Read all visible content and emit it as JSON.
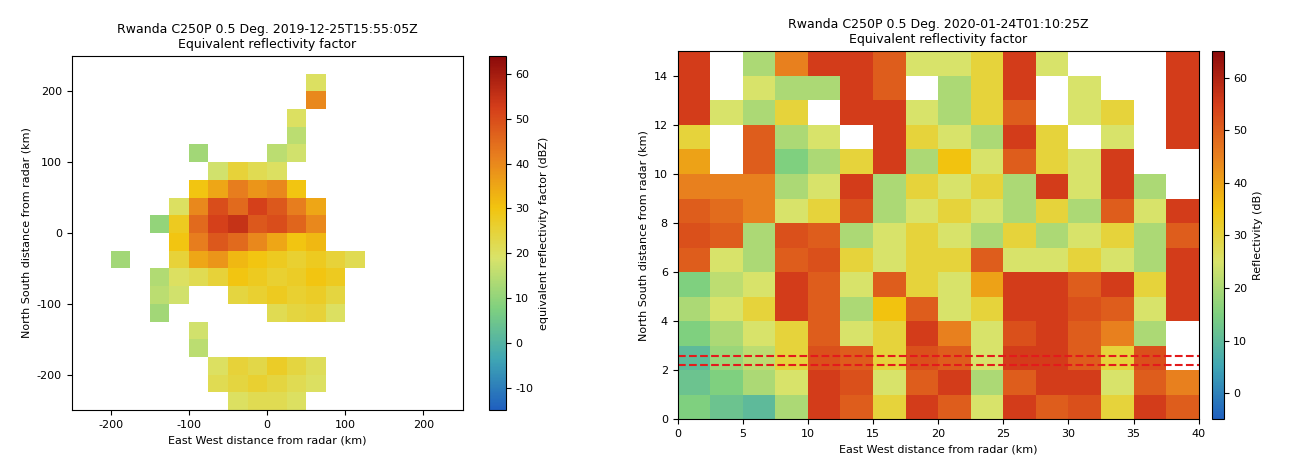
{
  "chart_data": [
    {
      "type": "heatmap",
      "title": "Rwanda C250P 0.5 Deg. 2019-12-25T15:55:05Z\nEquivalent reflectivity factor",
      "x_label": "East West distance from radar (km)",
      "y_label": "North South distance from radar (km)",
      "xlim": [
        -250,
        250
      ],
      "ylim": [
        -250,
        250
      ],
      "xticks": [
        -200,
        -100,
        0,
        100,
        200
      ],
      "yticks": [
        -200,
        -100,
        0,
        100,
        200
      ],
      "cells": [
        [
          null,
          null,
          null,
          null,
          null,
          null,
          null,
          null,
          20,
          22,
          22,
          20,
          null,
          null,
          null,
          null,
          null,
          null,
          null,
          null
        ],
        [
          null,
          null,
          null,
          null,
          null,
          null,
          null,
          22,
          24,
          26,
          24,
          22,
          20,
          null,
          null,
          null,
          null,
          null,
          null,
          null
        ],
        [
          null,
          null,
          null,
          null,
          null,
          null,
          null,
          20,
          25,
          23,
          27,
          24,
          21,
          null,
          null,
          null,
          null,
          null,
          null,
          null
        ],
        [
          null,
          null,
          null,
          null,
          null,
          null,
          15,
          null,
          null,
          null,
          null,
          null,
          null,
          null,
          null,
          null,
          null,
          null,
          null,
          null
        ],
        [
          null,
          null,
          null,
          null,
          null,
          null,
          18,
          null,
          null,
          null,
          null,
          null,
          null,
          null,
          null,
          null,
          null,
          null,
          null,
          null
        ],
        [
          null,
          null,
          null,
          null,
          12,
          null,
          null,
          null,
          null,
          null,
          22,
          24,
          25,
          20,
          null,
          null,
          null,
          null,
          null,
          null
        ],
        [
          null,
          null,
          null,
          null,
          15,
          18,
          null,
          null,
          24,
          26,
          28,
          26,
          27,
          24,
          null,
          null,
          null,
          null,
          null,
          null
        ],
        [
          null,
          null,
          null,
          null,
          14,
          20,
          22,
          25,
          30,
          28,
          26,
          27,
          30,
          28,
          null,
          null,
          null,
          null,
          null,
          null
        ],
        [
          null,
          null,
          12,
          null,
          null,
          25,
          35,
          38,
          32,
          30,
          28,
          26,
          28,
          25,
          22,
          null,
          null,
          null,
          null,
          null
        ],
        [
          null,
          null,
          null,
          null,
          null,
          30,
          42,
          48,
          45,
          40,
          35,
          30,
          32,
          null,
          null,
          null,
          null,
          null,
          null,
          null
        ],
        [
          null,
          null,
          null,
          null,
          10,
          28,
          45,
          52,
          55,
          48,
          50,
          46,
          40,
          null,
          null,
          null,
          null,
          null,
          null,
          null
        ],
        [
          null,
          null,
          null,
          null,
          null,
          20,
          40,
          50,
          45,
          52,
          48,
          42,
          35,
          null,
          null,
          null,
          null,
          null,
          null,
          null
        ],
        [
          null,
          null,
          null,
          null,
          null,
          null,
          30,
          35,
          42,
          38,
          40,
          30,
          null,
          null,
          null,
          null,
          null,
          null,
          null,
          null
        ],
        [
          null,
          null,
          null,
          null,
          null,
          null,
          null,
          18,
          25,
          22,
          20,
          null,
          null,
          null,
          null,
          null,
          null,
          null,
          null,
          null
        ],
        [
          null,
          null,
          null,
          null,
          null,
          null,
          12,
          null,
          null,
          null,
          15,
          18,
          null,
          null,
          null,
          null,
          null,
          null,
          null,
          null
        ],
        [
          null,
          null,
          null,
          null,
          null,
          null,
          null,
          null,
          null,
          null,
          null,
          15,
          null,
          null,
          null,
          null,
          null,
          null,
          null,
          null
        ],
        [
          null,
          null,
          null,
          null,
          null,
          null,
          null,
          null,
          null,
          null,
          null,
          20,
          null,
          null,
          null,
          null,
          null,
          null,
          null,
          null
        ],
        [
          null,
          null,
          null,
          null,
          null,
          null,
          null,
          null,
          null,
          null,
          null,
          null,
          40,
          null,
          null,
          null,
          null,
          null,
          null,
          null
        ],
        [
          null,
          null,
          null,
          null,
          null,
          null,
          null,
          null,
          null,
          null,
          null,
          null,
          20,
          null,
          null,
          null,
          null,
          null,
          null,
          null
        ],
        [
          null,
          null,
          null,
          null,
          null,
          null,
          null,
          null,
          null,
          null,
          null,
          null,
          null,
          null,
          null,
          null,
          null,
          null,
          null,
          null
        ]
      ],
      "colorbar": {
        "label": "equivalent reflectivity factor (dBZ)",
        "range": [
          -15,
          64
        ],
        "ticks": [
          -10,
          0,
          10,
          20,
          30,
          40,
          50,
          60
        ]
      }
    },
    {
      "type": "heatmap",
      "title": "Rwanda C250P 0.5 Deg. 2020-01-24T01:10:25Z\nEquivalent reflectivity factor",
      "x_label": "East West distance from radar (km)",
      "y_label": "North South distance from radar (km)",
      "xlim": [
        0,
        40
      ],
      "ylim": [
        0,
        15
      ],
      "xticks": [
        0,
        5,
        10,
        15,
        20,
        25,
        30,
        35,
        40
      ],
      "yticks": [
        0,
        2,
        4,
        6,
        8,
        10,
        12,
        14
      ],
      "cells": [
        [
          15,
          12,
          10,
          20,
          55,
          50,
          30,
          55,
          50,
          25,
          55,
          50,
          52,
          30,
          55,
          50
        ],
        [
          12,
          15,
          20,
          25,
          55,
          52,
          25,
          50,
          55,
          20,
          50,
          55,
          55,
          25,
          50,
          45
        ],
        [
          10,
          18,
          22,
          30,
          52,
          50,
          30,
          52,
          50,
          25,
          55,
          55,
          50,
          30,
          52,
          null
        ],
        [
          15,
          20,
          25,
          30,
          50,
          25,
          30,
          55,
          45,
          25,
          52,
          55,
          50,
          45,
          20,
          null
        ],
        [
          20,
          25,
          30,
          55,
          50,
          20,
          35,
          50,
          25,
          30,
          55,
          55,
          52,
          50,
          25,
          55
        ],
        [
          15,
          22,
          25,
          55,
          50,
          25,
          50,
          30,
          25,
          40,
          55,
          55,
          50,
          55,
          30,
          55
        ],
        [
          50,
          25,
          20,
          50,
          52,
          30,
          25,
          30,
          30,
          50,
          25,
          25,
          30,
          25,
          20,
          55
        ],
        [
          52,
          50,
          20,
          52,
          50,
          20,
          25,
          30,
          25,
          20,
          30,
          20,
          25,
          30,
          20,
          50
        ],
        [
          50,
          48,
          45,
          25,
          30,
          52,
          20,
          25,
          30,
          25,
          20,
          30,
          20,
          50,
          25,
          55
        ],
        [
          45,
          45,
          45,
          20,
          25,
          55,
          20,
          30,
          25,
          30,
          20,
          55,
          25,
          55,
          20,
          null
        ],
        [
          40,
          null,
          50,
          15,
          20,
          30,
          55,
          20,
          35,
          25,
          50,
          30,
          25,
          55,
          null,
          null
        ],
        [
          30,
          null,
          50,
          20,
          25,
          null,
          55,
          30,
          25,
          20,
          55,
          30,
          null,
          25,
          null,
          55
        ],
        [
          55,
          25,
          20,
          30,
          null,
          55,
          55,
          25,
          20,
          30,
          50,
          null,
          25,
          30,
          null,
          55
        ],
        [
          55,
          null,
          25,
          20,
          20,
          55,
          50,
          null,
          20,
          30,
          55,
          null,
          25,
          null,
          null,
          55
        ],
        [
          55,
          null,
          20,
          45,
          55,
          55,
          50,
          25,
          25,
          30,
          55,
          25,
          null,
          null,
          null,
          55
        ]
      ],
      "reference_lines": {
        "values": [
          2.2,
          2.6
        ],
        "color": "#e31a1c",
        "line_style": "dashed"
      },
      "colorbar": {
        "label": "Reflectivity (dB)",
        "range": [
          -5,
          65
        ],
        "ticks": [
          0,
          10,
          20,
          30,
          40,
          50,
          60
        ]
      }
    }
  ]
}
